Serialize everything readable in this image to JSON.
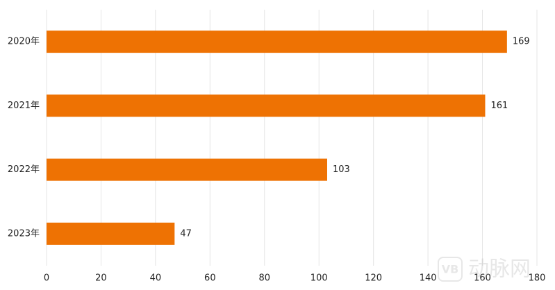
{
  "chart_data": {
    "type": "hbar",
    "categories": [
      "2020年",
      "2021年",
      "2022年",
      "2023年"
    ],
    "values": [
      169,
      161,
      103,
      47
    ],
    "color": "#ee7203",
    "xlim": [
      0,
      180
    ],
    "xticks": [
      0,
      20,
      40,
      60,
      80,
      100,
      120,
      140,
      160,
      180
    ],
    "grid": true,
    "watermark_logo": "VB",
    "watermark": "动脉网"
  }
}
